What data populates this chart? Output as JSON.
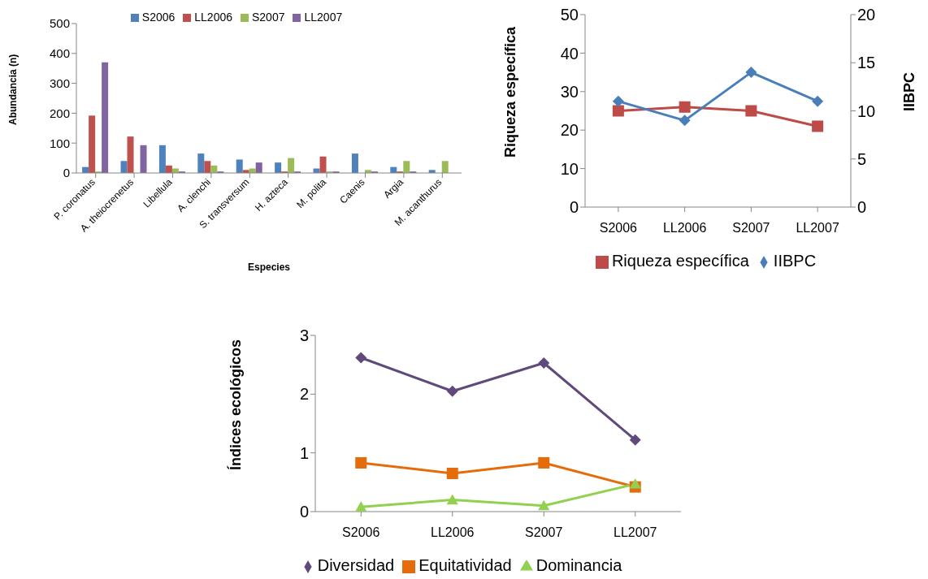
{
  "chart_data": [
    {
      "type": "bar",
      "xlabel": "Especies",
      "ylabel": "Abundancia (n)",
      "categories": [
        "P. coronatus",
        "A. theiocrenetus",
        "Libellula",
        "A. clenchi",
        "S. transversum",
        "H. azteca",
        "M. polita",
        "Caenis",
        "Argia",
        "M. acanthurus"
      ],
      "series": [
        {
          "name": "S2006",
          "color": "#4f81bd",
          "values": [
            20,
            40,
            93,
            65,
            45,
            35,
            15,
            65,
            20,
            10
          ]
        },
        {
          "name": "LL2006",
          "color": "#c0504d",
          "values": [
            192,
            122,
            25,
            40,
            10,
            5,
            55,
            0,
            5,
            0
          ]
        },
        {
          "name": "S2007",
          "color": "#9bbb59",
          "values": [
            5,
            0,
            15,
            25,
            15,
            50,
            5,
            10,
            40,
            40
          ]
        },
        {
          "name": "LL2007",
          "color": "#8064a2",
          "values": [
            370,
            93,
            5,
            5,
            35,
            5,
            5,
            5,
            5,
            0
          ]
        }
      ],
      "ylim": [
        0,
        500
      ],
      "yticks": [
        0,
        100,
        200,
        300,
        400,
        500
      ],
      "grid": false,
      "legend": "top"
    },
    {
      "type": "line",
      "ylabel": "Riqueza específica",
      "y2label": "IIBPC",
      "categories": [
        "S2006",
        "LL2006",
        "S2007",
        "LL2007"
      ],
      "series": [
        {
          "name": "Riqueza específica",
          "color": "#be4b48",
          "marker": "square",
          "values": [
            25,
            26,
            25,
            21
          ]
        },
        {
          "name": "IIBPC",
          "color": "#4a7ebb",
          "marker": "diamond",
          "axis": "y2",
          "values": [
            11,
            9,
            14,
            11
          ]
        }
      ],
      "ylim": [
        0,
        50
      ],
      "yticks": [
        0,
        10,
        20,
        30,
        40,
        50
      ],
      "y2lim": [
        0,
        20
      ],
      "y2ticks": [
        0,
        5,
        10,
        15,
        20
      ],
      "grid": false,
      "legend": "bottom"
    },
    {
      "type": "line",
      "ylabel": "Índices ecológicos",
      "categories": [
        "S2006",
        "LL2006",
        "S2007",
        "LL2007"
      ],
      "series": [
        {
          "name": "Diversidad",
          "color": "#604a7b",
          "marker": "diamond",
          "values": [
            2.62,
            2.05,
            2.53,
            1.22
          ]
        },
        {
          "name": "Equitatividad",
          "color": "#e46c0a",
          "marker": "square",
          "values": [
            0.83,
            0.65,
            0.83,
            0.42
          ]
        },
        {
          "name": "Dominancia",
          "color": "#92d050",
          "marker": "triangle",
          "values": [
            0.08,
            0.2,
            0.1,
            0.47
          ]
        }
      ],
      "ylim": [
        0,
        3
      ],
      "yticks": [
        0,
        1,
        2,
        3
      ],
      "grid": false,
      "legend": "bottom"
    }
  ]
}
